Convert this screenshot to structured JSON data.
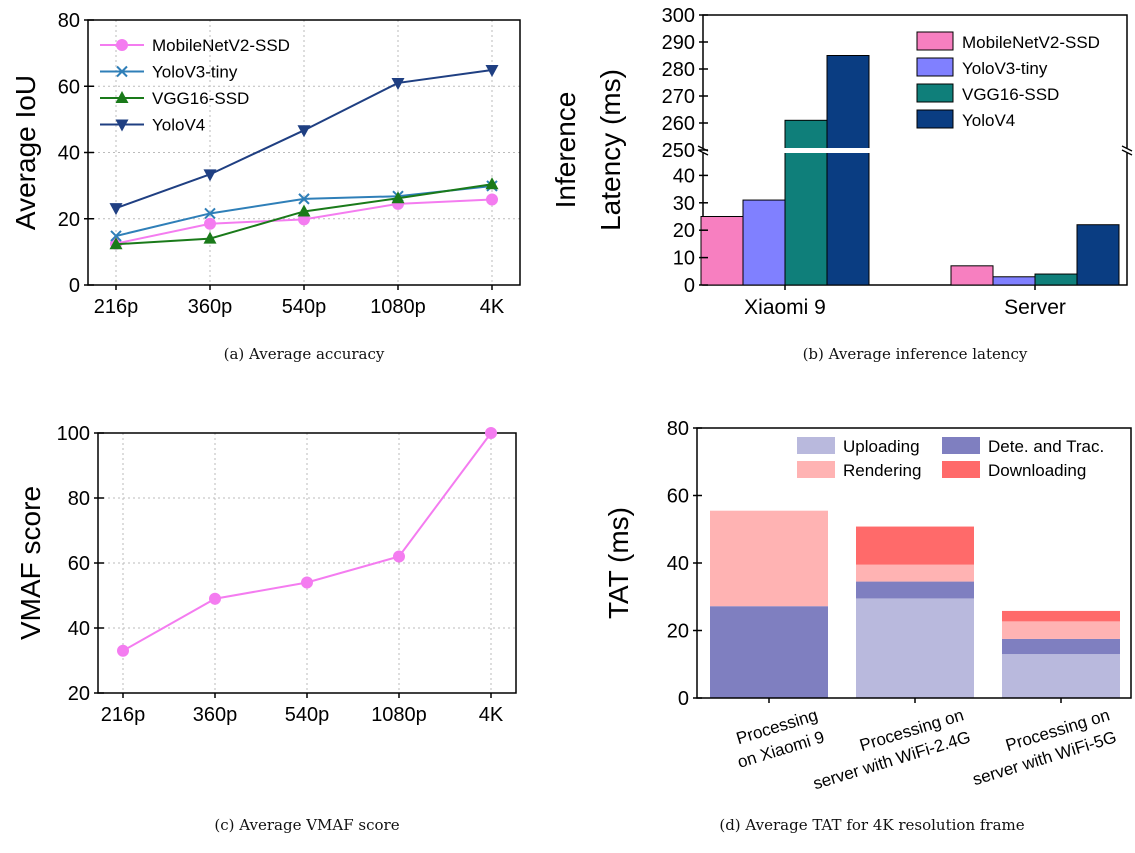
{
  "chart_data": [
    {
      "id": "a",
      "type": "line",
      "caption": "(a) Average accuracy",
      "ylabel": "Average IoU",
      "xlabel": "",
      "categories": [
        "216p",
        "360p",
        "540p",
        "1080p",
        "4K"
      ],
      "ylim": [
        0,
        80
      ],
      "yticks": [
        0,
        20,
        40,
        60,
        80
      ],
      "grid": true,
      "legend": "top-left",
      "series": [
        {
          "name": "MobileNetV2-SSD",
          "values": [
            12.5,
            18.5,
            19.8,
            24.5,
            25.8
          ],
          "color": "#f47cf0",
          "marker": "circle"
        },
        {
          "name": "YoloV3-tiny",
          "values": [
            14.8,
            21.6,
            26.0,
            26.8,
            29.9
          ],
          "color": "#2f7fb8",
          "marker": "x"
        },
        {
          "name": "VGG16-SSD",
          "values": [
            12.3,
            14.0,
            22.2,
            26.2,
            30.4
          ],
          "color": "#1a7a1a",
          "marker": "triangle-up"
        },
        {
          "name": "YoloV4",
          "values": [
            23.2,
            33.4,
            46.7,
            61.0,
            64.9
          ],
          "color": "#1f3f82",
          "marker": "triangle-down"
        }
      ]
    },
    {
      "id": "b",
      "type": "bar",
      "caption": "(b) Average inference latency",
      "ylabel": "Inference Latency (ms)",
      "ylabel_lines": [
        "Inference",
        "Latency (ms)"
      ],
      "xlabel": "",
      "categories": [
        "Xiaomi 9",
        "Server"
      ],
      "broken_axis": true,
      "ylim_lower": [
        0,
        50
      ],
      "yticks_lower": [
        0,
        10,
        20,
        30,
        40
      ],
      "ylim_upper": [
        250,
        300
      ],
      "yticks_upper": [
        250,
        260,
        270,
        280,
        290,
        300
      ],
      "legend": "top-right",
      "series": [
        {
          "name": "MobileNetV2-SSD",
          "values": [
            25,
            7
          ],
          "color": "#f77fc0"
        },
        {
          "name": "YoloV3-tiny",
          "values": [
            31,
            3
          ],
          "color": "#8080ff"
        },
        {
          "name": "VGG16-SSD",
          "values": [
            261,
            4
          ],
          "color": "#0f7f7a"
        },
        {
          "name": "YoloV4",
          "values": [
            285,
            22
          ],
          "color": "#0a3d82"
        }
      ]
    },
    {
      "id": "c",
      "type": "line",
      "caption": "(c) Average VMAF score",
      "ylabel": "VMAF score",
      "xlabel": "",
      "categories": [
        "216p",
        "360p",
        "540p",
        "1080p",
        "4K"
      ],
      "ylim": [
        20,
        100
      ],
      "yticks": [
        20,
        40,
        60,
        80,
        100
      ],
      "grid": true,
      "series": [
        {
          "values": [
            33,
            49,
            54,
            62,
            100
          ],
          "color": "#f47cf0",
          "marker": "circle"
        }
      ]
    },
    {
      "id": "d",
      "type": "bar",
      "stacked": true,
      "caption": "(d) Average TAT for 4K resolution frame",
      "ylabel": "TAT (ms)",
      "xlabel": "",
      "categories": [
        [
          "Processing",
          "on Xiaomi 9"
        ],
        [
          "Processing on",
          "server with WiFi-2.4G"
        ],
        [
          "Processing on",
          "server with WiFi-5G"
        ]
      ],
      "ylim": [
        0,
        80
      ],
      "yticks": [
        0,
        20,
        40,
        60,
        80
      ],
      "legend": "top-right",
      "series": [
        {
          "name": "Uploading",
          "values": [
            0,
            29.5,
            13
          ],
          "color": "#b9b9dd"
        },
        {
          "name": "Dete. and Trac.",
          "values": [
            27.2,
            5,
            4.5
          ],
          "color": "#7f7fc0"
        },
        {
          "name": "Rendering",
          "values": [
            28.3,
            5,
            5.2
          ],
          "color": "#ffb3b3"
        },
        {
          "name": "Downloading",
          "values": [
            0,
            11.3,
            3.1
          ],
          "color": "#ff6a6a"
        }
      ],
      "legend_order": [
        "Uploading",
        "Dete. and Trac.",
        "Rendering",
        "Downloading"
      ]
    }
  ]
}
